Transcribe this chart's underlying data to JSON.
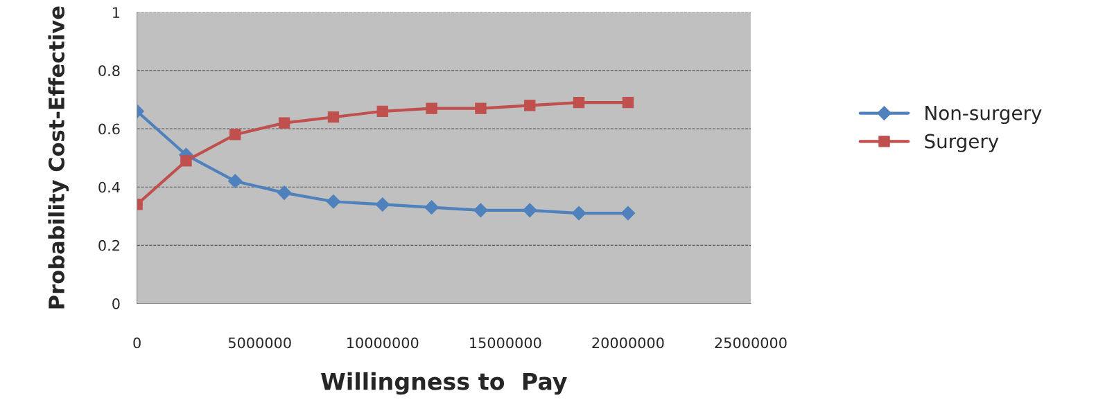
{
  "chart_data": {
    "type": "line",
    "xlabel": "Willingness to  Pay",
    "ylabel": "Probability Cost-Effective",
    "x": [
      0,
      2000000,
      4000000,
      6000000,
      8000000,
      10000000,
      12000000,
      14000000,
      16000000,
      18000000,
      20000000
    ],
    "series": [
      {
        "name": "Non-surgery",
        "color": "#4f81bd",
        "marker": "diamond",
        "values": [
          0.66,
          0.51,
          0.42,
          0.38,
          0.35,
          0.34,
          0.33,
          0.32,
          0.32,
          0.31,
          0.31
        ]
      },
      {
        "name": "Surgery",
        "color": "#c0504d",
        "marker": "square",
        "values": [
          0.34,
          0.49,
          0.58,
          0.62,
          0.64,
          0.66,
          0.67,
          0.67,
          0.68,
          0.69,
          0.69
        ]
      }
    ],
    "xlim": [
      0,
      25000000
    ],
    "xticks": [
      0,
      5000000,
      10000000,
      15000000,
      20000000,
      25000000
    ],
    "ylim": [
      0,
      1
    ],
    "yticks": [
      0,
      0.2,
      0.4,
      0.6,
      0.8,
      1
    ],
    "grid": "y",
    "legend": "right"
  }
}
